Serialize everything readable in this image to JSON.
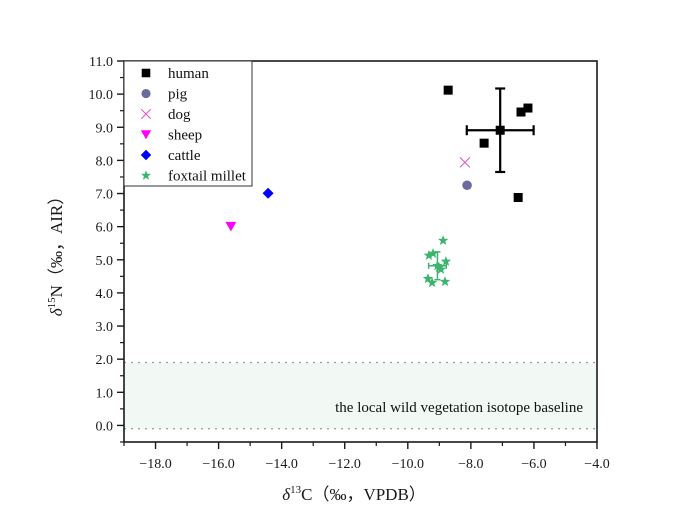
{
  "chart_data": {
    "type": "scatter",
    "title": "",
    "xlabel": {
      "delta": "δ",
      "sup": "13",
      "rest": "C（‰，VPDB）"
    },
    "ylabel": {
      "delta": "δ",
      "sup": "15",
      "rest": "N（‰，AIR）"
    },
    "xlim": [
      -19.0,
      -4.0
    ],
    "ylim": [
      -0.5,
      11.0
    ],
    "x_ticks": [
      {
        "value": -18,
        "label": "−18.0"
      },
      {
        "value": -16,
        "label": "−16.0"
      },
      {
        "value": -14,
        "label": "−14.0"
      },
      {
        "value": -12,
        "label": "−12.0"
      },
      {
        "value": -10,
        "label": "−10.0"
      },
      {
        "value": -8,
        "label": "−8.0"
      },
      {
        "value": -6,
        "label": "−6.0"
      },
      {
        "value": -4,
        "label": "−4.0"
      }
    ],
    "x_minor_ticks": [
      -19,
      -17,
      -15,
      -13,
      -11,
      -9,
      -7,
      -5
    ],
    "y_ticks": [
      {
        "value": 0,
        "label": "0.0"
      },
      {
        "value": 1,
        "label": "1.0"
      },
      {
        "value": 2,
        "label": "2.0"
      },
      {
        "value": 3,
        "label": "3.0"
      },
      {
        "value": 4,
        "label": "4.0"
      },
      {
        "value": 5,
        "label": "5.0"
      },
      {
        "value": 6,
        "label": "6.0"
      },
      {
        "value": 7,
        "label": "7.0"
      },
      {
        "value": 8,
        "label": "8.0"
      },
      {
        "value": 9,
        "label": "9.0"
      },
      {
        "value": 10,
        "label": "10.0"
      },
      {
        "value": 11,
        "label": "11.0"
      }
    ],
    "y_minor_ticks": [
      -0.5,
      0.5,
      1.5,
      2.5,
      3.5,
      4.5,
      5.5,
      6.5,
      7.5,
      8.5,
      9.5,
      10.5
    ],
    "grid": false,
    "legend_position": "top-left",
    "baseline_band": {
      "y_low": -0.1,
      "y_high": 1.9,
      "fill": "#f2f9f4",
      "line_color": "#999999",
      "label": "the local wild vegetation isotope baseline"
    },
    "series": [
      {
        "name": "human",
        "marker": "square",
        "color": "#000000",
        "points": [
          {
            "x": -8.72,
            "y": 10.12
          },
          {
            "x": -7.58,
            "y": 8.52
          },
          {
            "x": -6.41,
            "y": 9.46
          },
          {
            "x": -6.19,
            "y": 9.58
          },
          {
            "x": -6.5,
            "y": 6.88
          }
        ],
        "mean": {
          "x": -7.07,
          "y": 8.91,
          "x_err": 1.06,
          "y_err": 1.26
        }
      },
      {
        "name": "pig",
        "marker": "circle",
        "color": "#6a6a9c",
        "points": [
          {
            "x": -8.12,
            "y": 7.25
          }
        ]
      },
      {
        "name": "dog",
        "marker": "cross",
        "color": "#e05cc0",
        "points": [
          {
            "x": -8.19,
            "y": 7.94
          }
        ]
      },
      {
        "name": "sheep",
        "marker": "triangle-down",
        "color": "#ff00ff",
        "points": [
          {
            "x": -15.61,
            "y": 6.01
          }
        ]
      },
      {
        "name": "cattle",
        "marker": "diamond",
        "color": "#0000ff",
        "points": [
          {
            "x": -14.43,
            "y": 7.01
          }
        ]
      },
      {
        "name": "foxtail millet",
        "marker": "star",
        "color": "#3cb46e",
        "points": [
          {
            "x": -8.88,
            "y": 5.58
          },
          {
            "x": -9.33,
            "y": 5.13
          },
          {
            "x": -9.2,
            "y": 5.19
          },
          {
            "x": -8.79,
            "y": 4.95
          },
          {
            "x": -9.01,
            "y": 4.77
          },
          {
            "x": -8.95,
            "y": 4.71
          },
          {
            "x": -9.36,
            "y": 4.43
          },
          {
            "x": -9.23,
            "y": 4.31
          },
          {
            "x": -8.82,
            "y": 4.34
          }
        ],
        "mean": {
          "x": -9.06,
          "y": 4.82,
          "x_err": 0.28,
          "y_err": 0.42
        }
      }
    ]
  }
}
